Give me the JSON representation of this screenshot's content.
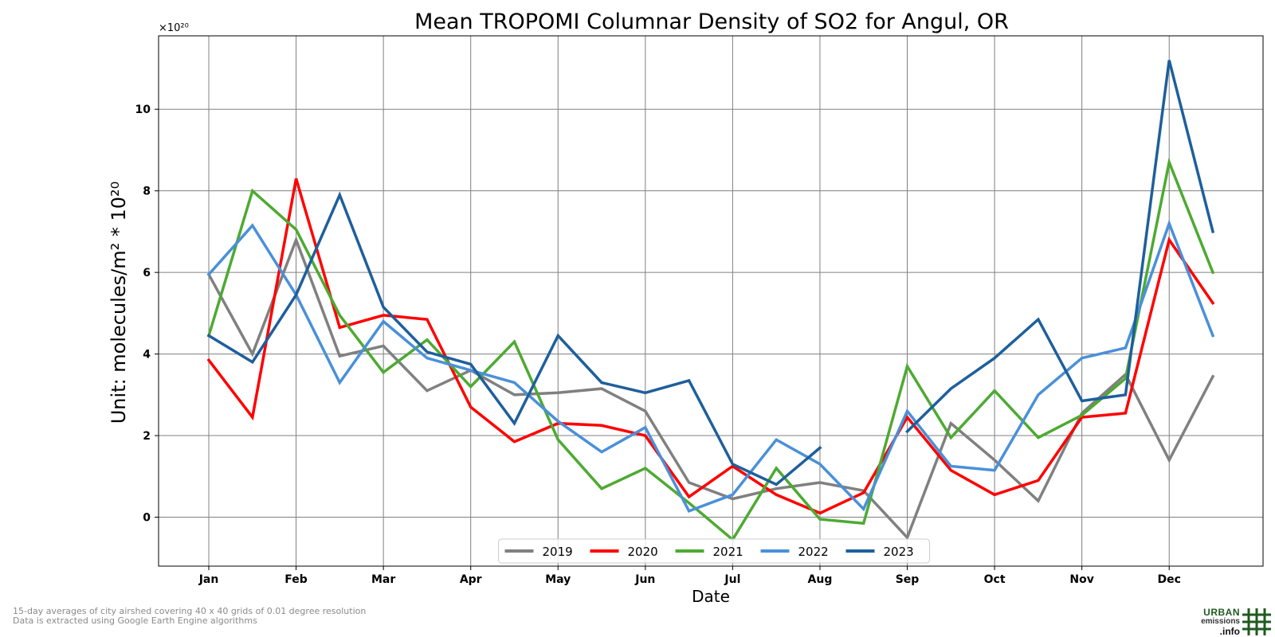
{
  "chart_data": {
    "type": "line",
    "title": "Mean TROPOMI Columnar Density of SO2 for Angul, OR",
    "xlabel": "Date",
    "ylabel": "Unit: molecules/m² * 10²⁰",
    "y_offset_label": "×10²⁰",
    "ylim": [
      -1.2,
      11.8
    ],
    "xlim": [
      -1.15,
      24.15
    ],
    "y_ticks": [
      0,
      2,
      4,
      6,
      8,
      10
    ],
    "x_ticks": [
      {
        "x": 0,
        "label": "Jan"
      },
      {
        "x": 2,
        "label": "Feb"
      },
      {
        "x": 4,
        "label": "Mar"
      },
      {
        "x": 6,
        "label": "Apr"
      },
      {
        "x": 8,
        "label": "May"
      },
      {
        "x": 10,
        "label": "Jun"
      },
      {
        "x": 12,
        "label": "Jul"
      },
      {
        "x": 14,
        "label": "Aug"
      },
      {
        "x": 16,
        "label": "Sep"
      },
      {
        "x": 18,
        "label": "Oct"
      },
      {
        "x": 20,
        "label": "Nov"
      },
      {
        "x": 22,
        "label": "Dec"
      }
    ],
    "grid": true,
    "legend_position": "lower center",
    "x_note": "x values are 15-day periods; each month has two points, labeled at the first",
    "series": [
      {
        "name": "2019",
        "color": "#808080",
        "x": [
          0,
          1,
          2,
          3,
          4,
          5,
          6,
          7,
          8,
          9,
          10,
          11,
          12,
          13,
          14,
          15,
          16,
          17,
          18,
          19,
          20,
          21,
          22,
          23
        ],
        "values": [
          5.95,
          4.0,
          6.8,
          3.95,
          4.2,
          3.1,
          3.6,
          3.0,
          3.05,
          3.15,
          2.6,
          0.85,
          0.45,
          0.7,
          0.85,
          0.65,
          -0.5,
          2.3,
          1.4,
          0.4,
          2.55,
          3.5,
          1.4,
          3.45
        ]
      },
      {
        "name": "2020",
        "color": "#ff0000",
        "x": [
          0,
          1,
          2,
          3,
          4,
          5,
          6,
          7,
          8,
          9,
          10,
          11,
          12,
          13,
          14,
          15,
          16,
          17,
          18,
          19,
          20,
          21,
          22,
          23
        ],
        "values": [
          3.85,
          2.45,
          8.3,
          4.65,
          4.95,
          4.85,
          2.7,
          1.85,
          2.3,
          2.25,
          2.0,
          0.5,
          1.25,
          0.55,
          0.1,
          0.6,
          2.45,
          1.15,
          0.55,
          0.9,
          2.45,
          2.55,
          6.8,
          5.25
        ]
      },
      {
        "name": "2021",
        "color": "#4daa32",
        "x": [
          0,
          1,
          2,
          3,
          4,
          5,
          6,
          7,
          8,
          9,
          10,
          11,
          12,
          13,
          14,
          15,
          16,
          17,
          18,
          19,
          20,
          21,
          22,
          23
        ],
        "values": [
          4.45,
          8.0,
          7.05,
          4.95,
          3.55,
          4.35,
          3.2,
          4.3,
          1.9,
          0.7,
          1.2,
          0.35,
          -0.55,
          1.2,
          -0.05,
          -0.15,
          3.7,
          1.95,
          3.1,
          1.95,
          2.5,
          3.4,
          8.7,
          6.0
        ]
      },
      {
        "name": "2022",
        "color": "#4a90d9",
        "x": [
          0,
          1,
          2,
          3,
          4,
          5,
          6,
          7,
          8,
          9,
          10,
          11,
          12,
          13,
          14,
          15,
          16,
          17,
          18,
          19,
          20,
          21,
          22,
          23
        ],
        "values": [
          5.95,
          7.15,
          5.45,
          3.3,
          4.8,
          3.9,
          3.6,
          3.3,
          2.35,
          1.6,
          2.2,
          0.15,
          0.55,
          1.9,
          1.3,
          0.2,
          2.6,
          1.25,
          1.15,
          3.0,
          3.9,
          4.15,
          7.2,
          4.45
        ]
      },
      {
        "name": "2023",
        "color": "#1e5f9c",
        "x": [
          0,
          1,
          2,
          3,
          4,
          5,
          6,
          7,
          8,
          9,
          10,
          11,
          12,
          13,
          14,
          16,
          17,
          18,
          19,
          20,
          21,
          22,
          23
        ],
        "values": [
          4.45,
          3.8,
          5.45,
          7.9,
          5.15,
          4.05,
          3.75,
          2.3,
          4.45,
          3.3,
          3.05,
          3.35,
          1.3,
          0.8,
          1.7,
          2.1,
          3.15,
          3.9,
          4.85,
          2.85,
          3.0,
          11.2,
          7.0
        ],
        "segments": [
          [
            0,
            15
          ],
          [
            15,
            23
          ]
        ]
      }
    ]
  },
  "footnote": {
    "line1": "15-day averages of city airshed covering 40 x 40 grids of 0.01 degree resolution",
    "line2": "Data is extracted using Google Earth Engine algorithms"
  },
  "logo": {
    "line1": "URBAN",
    "line2": "emissions",
    "line3": ".info",
    "color": "#1f5a1f"
  }
}
